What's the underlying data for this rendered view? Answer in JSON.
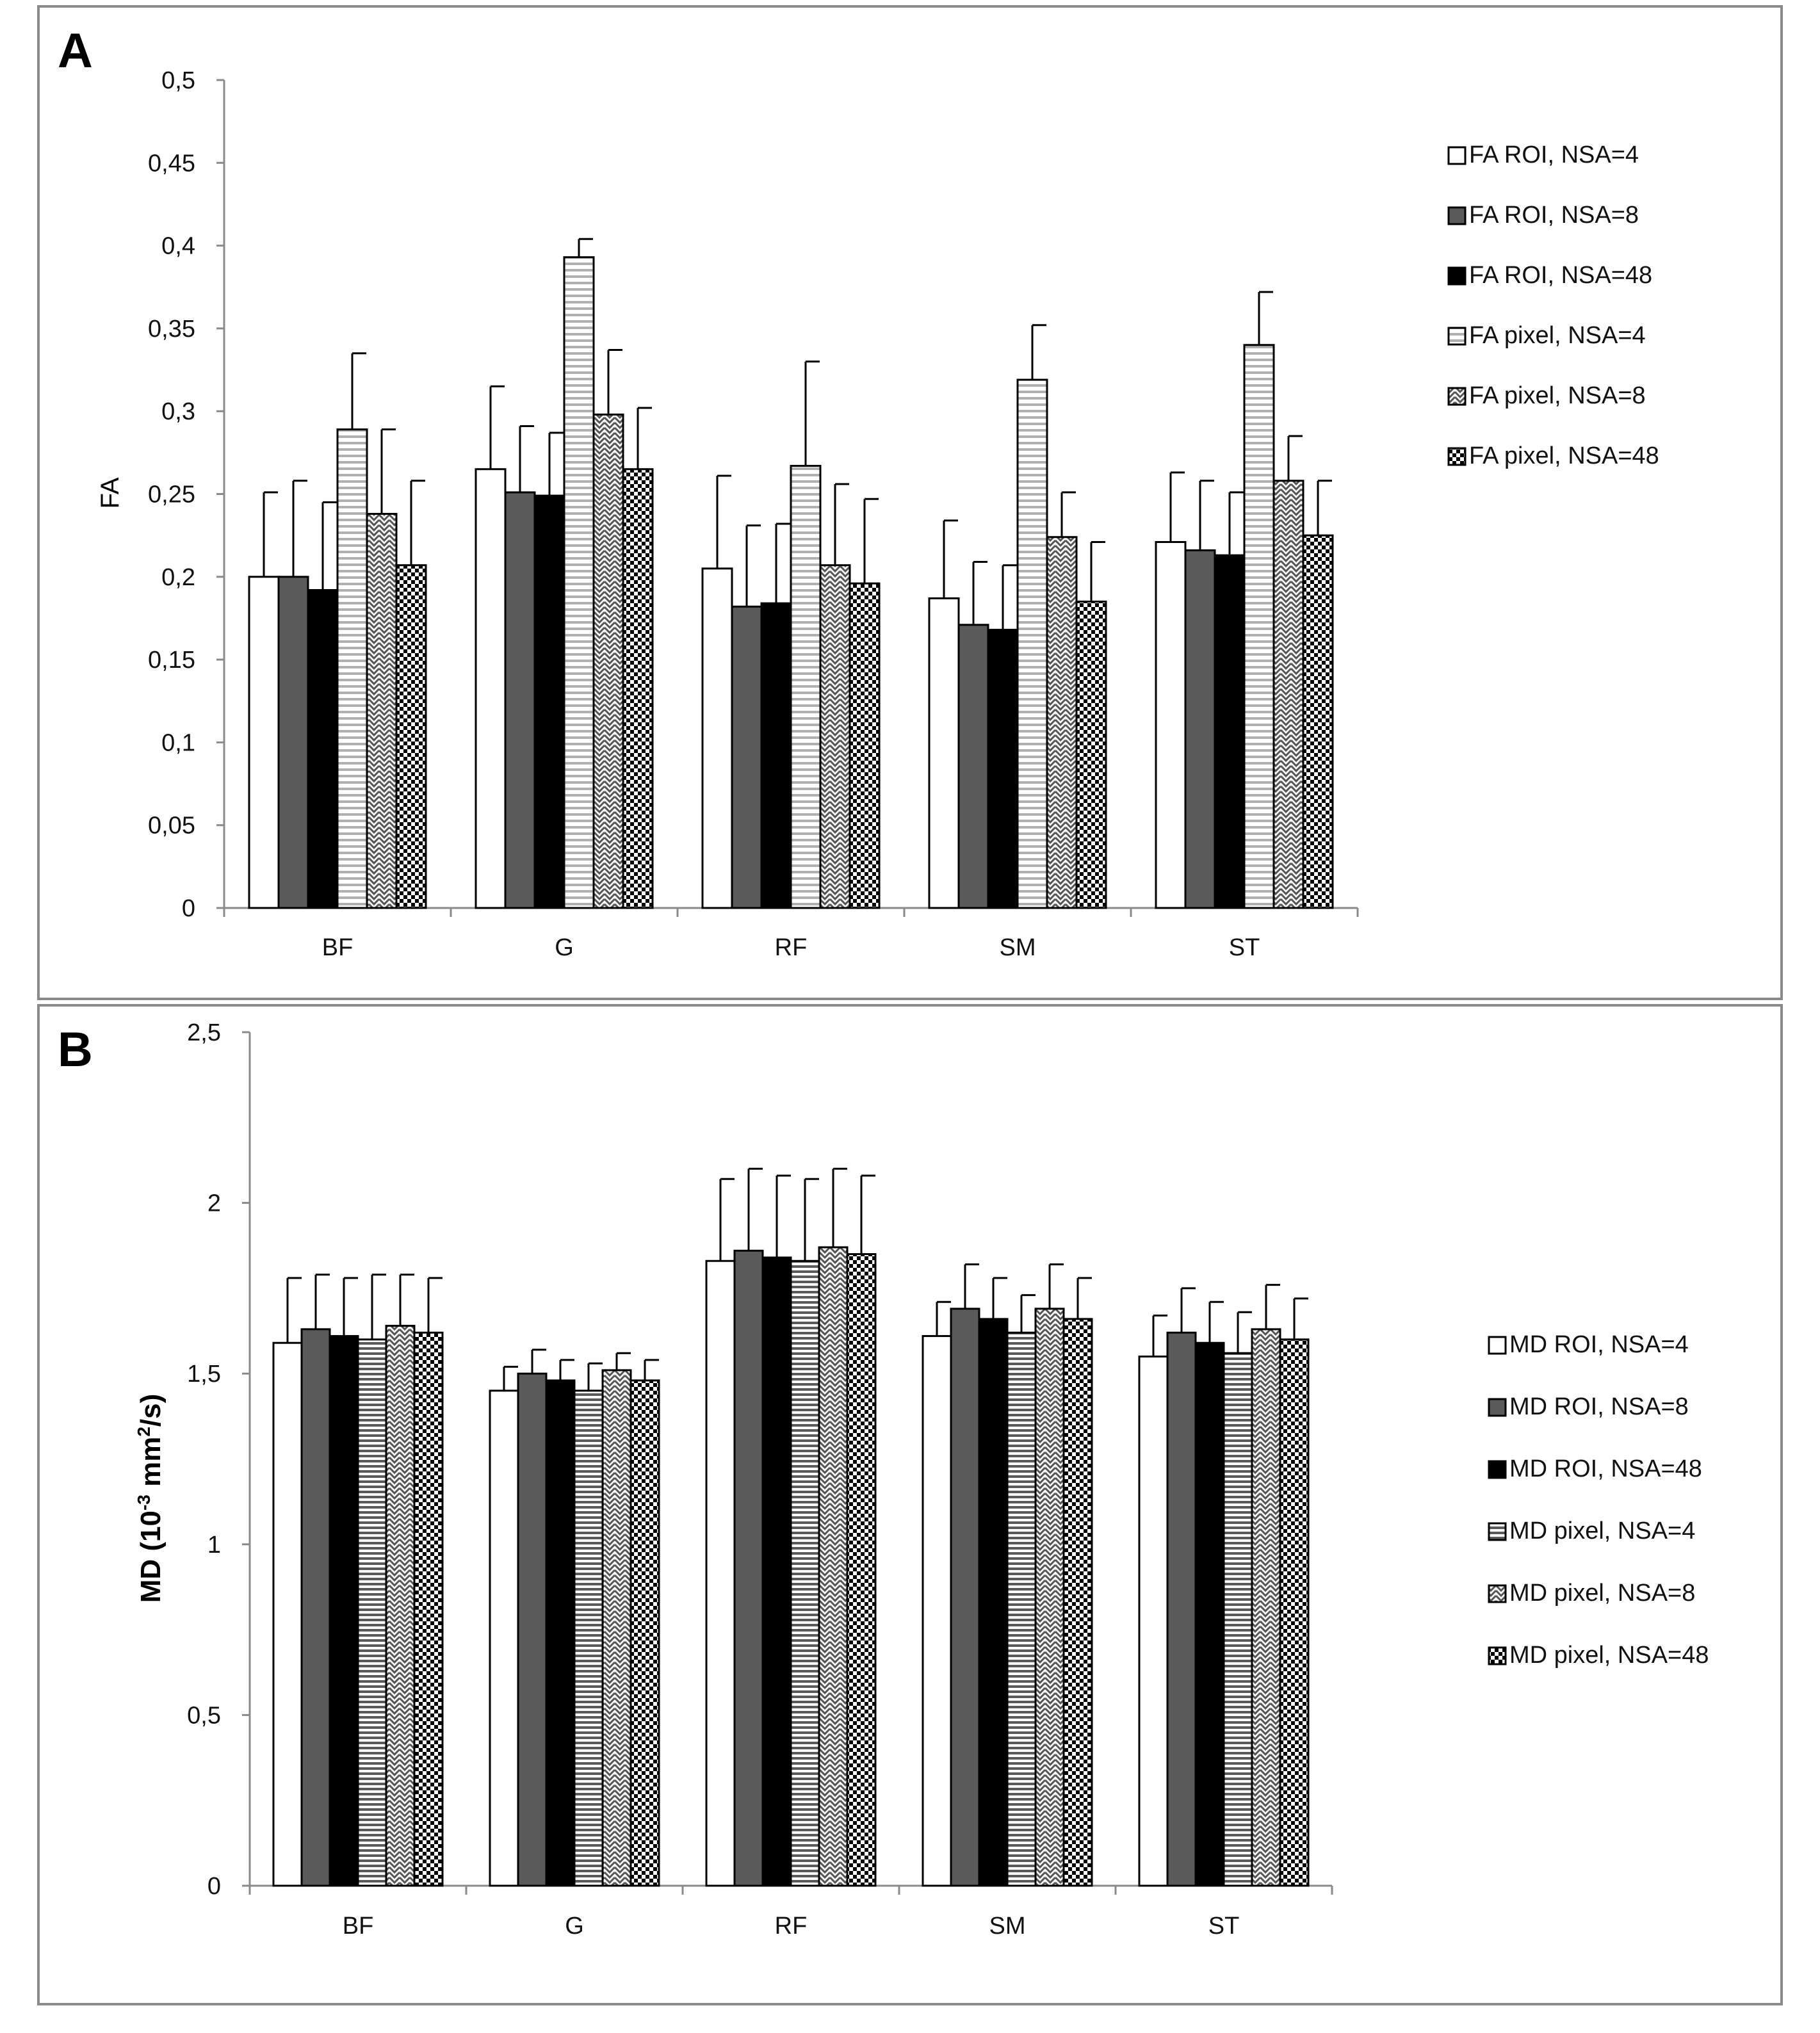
{
  "colors": {
    "frame": "#8a8a8a",
    "white": "#ffffff",
    "darkgray": "#5a5a5a",
    "black": "#000000",
    "lightgray": "#e6e6e6"
  },
  "chart_data": [
    {
      "panel": "A",
      "type": "bar",
      "ylabel": "FA",
      "ylim": [
        0,
        0.5
      ],
      "yticks": [
        0,
        0.05,
        0.1,
        0.15,
        0.2,
        0.25,
        0.3,
        0.35,
        0.4,
        0.45,
        0.5
      ],
      "yticklabels": [
        "0",
        "0,05",
        "0,1",
        "0,15",
        "0,2",
        "0,25",
        "0,3",
        "0,35",
        "0,4",
        "0,45",
        "0,5"
      ],
      "categories": [
        "BF",
        "G",
        "RF",
        "SM",
        "ST"
      ],
      "legend_position": "right",
      "series": [
        {
          "name": "FA ROI, NSA=4",
          "pattern": "white",
          "values": [
            0.2,
            0.265,
            0.205,
            0.187,
            0.221
          ],
          "errors": [
            0.051,
            0.05,
            0.056,
            0.047,
            0.042
          ]
        },
        {
          "name": "FA ROI, NSA=8",
          "pattern": "darkgray",
          "values": [
            0.2,
            0.251,
            0.182,
            0.171,
            0.216
          ],
          "errors": [
            0.058,
            0.04,
            0.049,
            0.038,
            0.042
          ]
        },
        {
          "name": "FA ROI, NSA=48",
          "pattern": "black",
          "values": [
            0.192,
            0.249,
            0.184,
            0.168,
            0.213
          ],
          "errors": [
            0.053,
            0.038,
            0.048,
            0.039,
            0.038
          ]
        },
        {
          "name": "FA pixel, NSA=4",
          "pattern": "hstripe",
          "values": [
            0.289,
            0.393,
            0.267,
            0.319,
            0.34
          ],
          "errors": [
            0.046,
            0.011,
            0.063,
            0.033,
            0.032
          ]
        },
        {
          "name": "FA pixel, NSA=8",
          "pattern": "zigzag",
          "values": [
            0.238,
            0.298,
            0.207,
            0.224,
            0.258
          ],
          "errors": [
            0.051,
            0.039,
            0.049,
            0.027,
            0.027
          ]
        },
        {
          "name": "FA pixel, NSA=48",
          "pattern": "checker",
          "values": [
            0.207,
            0.265,
            0.196,
            0.185,
            0.225
          ],
          "errors": [
            0.051,
            0.037,
            0.051,
            0.036,
            0.033
          ]
        }
      ]
    },
    {
      "panel": "B",
      "type": "bar",
      "ylabel_pre": "MD (10",
      "ylabel_sup1": "-3",
      "ylabel_mid": " mm",
      "ylabel_sup2": "2",
      "ylabel_post": "/s)",
      "ylim": [
        0,
        2.5
      ],
      "yticks": [
        0,
        0.5,
        1,
        1.5,
        2,
        2.5
      ],
      "yticklabels": [
        "0",
        "0,5",
        "1",
        "1,5",
        "2",
        "2,5"
      ],
      "categories": [
        "BF",
        "G",
        "RF",
        "SM",
        "ST"
      ],
      "legend_position": "right",
      "series": [
        {
          "name": "MD ROI, NSA=4",
          "pattern": "white",
          "values": [
            1.59,
            1.45,
            1.83,
            1.61,
            1.55
          ],
          "errors": [
            0.19,
            0.07,
            0.24,
            0.1,
            0.12
          ]
        },
        {
          "name": "MD ROI, NSA=8",
          "pattern": "darkgray",
          "values": [
            1.63,
            1.5,
            1.86,
            1.69,
            1.62
          ],
          "errors": [
            0.16,
            0.07,
            0.24,
            0.13,
            0.13
          ]
        },
        {
          "name": "MD ROI, NSA=48",
          "pattern": "black",
          "values": [
            1.61,
            1.48,
            1.84,
            1.66,
            1.59
          ],
          "errors": [
            0.17,
            0.06,
            0.24,
            0.12,
            0.12
          ]
        },
        {
          "name": "MD pixel, NSA=4",
          "pattern": "hstripe_dense",
          "values": [
            1.6,
            1.45,
            1.83,
            1.62,
            1.56
          ],
          "errors": [
            0.19,
            0.08,
            0.24,
            0.11,
            0.12
          ]
        },
        {
          "name": "MD pixel, NSA=8",
          "pattern": "zigzag",
          "values": [
            1.64,
            1.51,
            1.87,
            1.69,
            1.63
          ],
          "errors": [
            0.15,
            0.05,
            0.23,
            0.13,
            0.13
          ]
        },
        {
          "name": "MD pixel, NSA=48",
          "pattern": "checker",
          "values": [
            1.62,
            1.48,
            1.85,
            1.66,
            1.6
          ],
          "errors": [
            0.16,
            0.06,
            0.23,
            0.12,
            0.12
          ]
        }
      ]
    }
  ]
}
